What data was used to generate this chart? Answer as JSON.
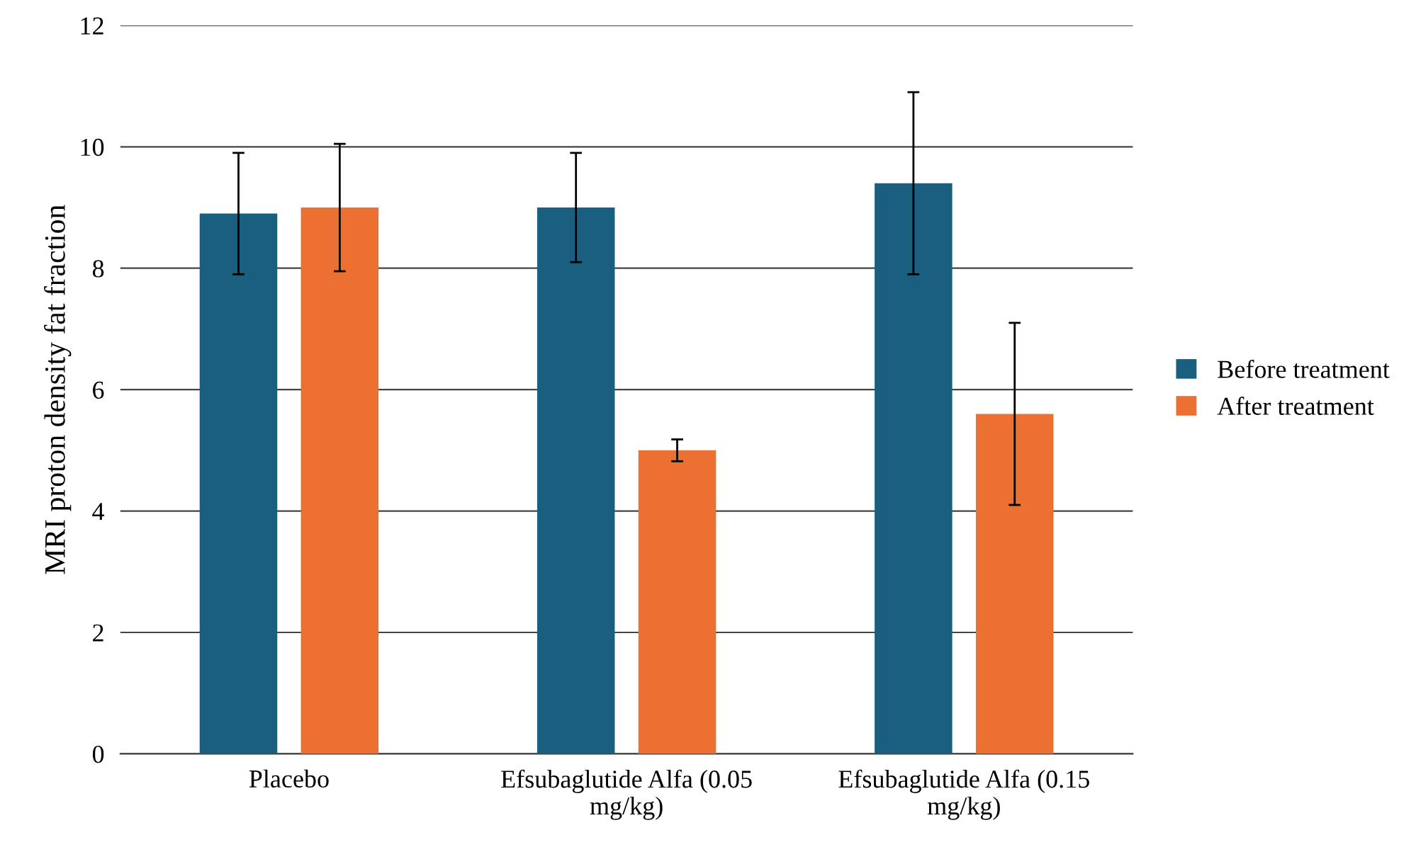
{
  "chart_data": {
    "type": "bar",
    "ylabel": "MRI proton density fat fraction",
    "categories": [
      "Placebo",
      "Efsubaglutide Alfa (0.05\nmg/kg)",
      "Efsubaglutide Alfa (0.15\nmg/kg)"
    ],
    "series": [
      {
        "name": "Before treatment",
        "color": "#1a5f80",
        "values": [
          8.9,
          9.0,
          9.4
        ],
        "errors": [
          1.0,
          0.9,
          1.5
        ]
      },
      {
        "name": "After treatment",
        "color": "#ec7032",
        "values": [
          9.0,
          5.0,
          5.6
        ],
        "errors": [
          1.05,
          0.18,
          1.5
        ]
      }
    ],
    "ylim": [
      0,
      12
    ],
    "yticks": [
      0,
      2,
      4,
      6,
      8,
      10,
      12
    ],
    "grid": "y",
    "legend": "right"
  }
}
